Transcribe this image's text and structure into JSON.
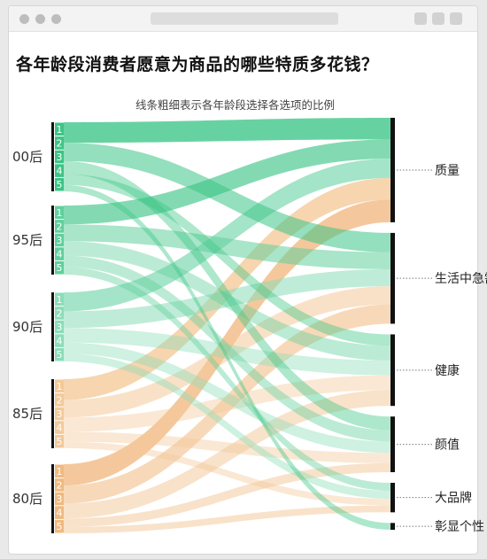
{
  "chart_data": {
    "type": "sankey",
    "title": "各年龄段消费者愿意为商品的哪些特质多花钱？",
    "subtitle": "线条粗细表示各年龄段选择各选项的比例",
    "sources": [
      {
        "label": "00后",
        "ranks": [
          "1",
          "2",
          "3",
          "4",
          "5"
        ],
        "color": "#3cc586"
      },
      {
        "label": "95后",
        "ranks": [
          "1",
          "2",
          "3",
          "4",
          "5"
        ],
        "color": "#60d09c"
      },
      {
        "label": "90后",
        "ranks": [
          "1",
          "2",
          "3",
          "4",
          "5"
        ],
        "color": "#8bddb8"
      },
      {
        "label": "85后",
        "ranks": [
          "1",
          "2",
          "3",
          "4",
          "5"
        ],
        "color": "#f4c999"
      },
      {
        "label": "80后",
        "ranks": [
          "1",
          "2",
          "3",
          "4",
          "5"
        ],
        "color": "#f1b980"
      }
    ],
    "targets": [
      "质量",
      "生活中急需",
      "健康",
      "颜值",
      "大品牌",
      "彰显个性"
    ],
    "flows": [
      {
        "source": 0,
        "rank": 1,
        "target": 0,
        "value": 19
      },
      {
        "source": 0,
        "rank": 2,
        "target": 1,
        "value": 17
      },
      {
        "source": 0,
        "rank": 3,
        "target": 3,
        "value": 12
      },
      {
        "source": 0,
        "rank": 4,
        "target": 2,
        "value": 10
      },
      {
        "source": 0,
        "rank": 5,
        "target": 5,
        "value": 6
      },
      {
        "source": 1,
        "rank": 1,
        "target": 0,
        "value": 17
      },
      {
        "source": 1,
        "rank": 2,
        "target": 1,
        "value": 15
      },
      {
        "source": 1,
        "rank": 3,
        "target": 2,
        "value": 13
      },
      {
        "source": 1,
        "rank": 4,
        "target": 3,
        "value": 10
      },
      {
        "source": 1,
        "rank": 5,
        "target": 4,
        "value": 7
      },
      {
        "source": 2,
        "rank": 1,
        "target": 0,
        "value": 17
      },
      {
        "source": 2,
        "rank": 2,
        "target": 1,
        "value": 15
      },
      {
        "source": 2,
        "rank": 3,
        "target": 2,
        "value": 13
      },
      {
        "source": 2,
        "rank": 4,
        "target": 3,
        "value": 10
      },
      {
        "source": 2,
        "rank": 5,
        "target": 4,
        "value": 7
      },
      {
        "source": 3,
        "rank": 1,
        "target": 0,
        "value": 19
      },
      {
        "source": 3,
        "rank": 2,
        "target": 1,
        "value": 16
      },
      {
        "source": 3,
        "rank": 3,
        "target": 2,
        "value": 13
      },
      {
        "source": 3,
        "rank": 4,
        "target": 3,
        "value": 9
      },
      {
        "source": 3,
        "rank": 5,
        "target": 4,
        "value": 6
      },
      {
        "source": 4,
        "rank": 1,
        "target": 0,
        "value": 20
      },
      {
        "source": 4,
        "rank": 2,
        "target": 1,
        "value": 17
      },
      {
        "source": 4,
        "rank": 3,
        "target": 2,
        "value": 14
      },
      {
        "source": 4,
        "rank": 4,
        "target": 3,
        "value": 8
      },
      {
        "source": 4,
        "rank": 5,
        "target": 4,
        "value": 6
      }
    ]
  }
}
